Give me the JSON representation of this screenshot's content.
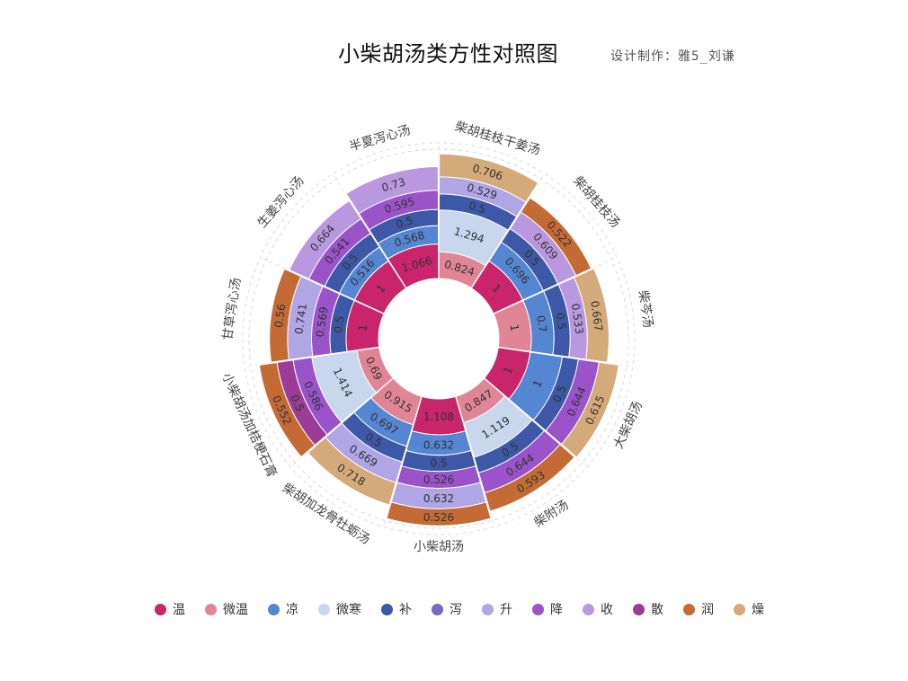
{
  "header": {
    "title": "小柴胡汤类方性对照图",
    "subtitle": "设计制作：雅5_刘谦"
  },
  "chart_data": {
    "type": "sunburst-stacked-radial-bar",
    "title": "小柴胡汤类方性对照图",
    "legend_position": "bottom",
    "series": [
      {
        "name": "温",
        "color": "#c8256a"
      },
      {
        "name": "微温",
        "color": "#df8595"
      },
      {
        "name": "凉",
        "color": "#5586d2"
      },
      {
        "name": "微寒",
        "color": "#c8d7ee"
      },
      {
        "name": "补",
        "color": "#3d58a6"
      },
      {
        "name": "泻",
        "color": "#7767c7"
      },
      {
        "name": "升",
        "color": "#b0a5e5"
      },
      {
        "name": "降",
        "color": "#9a53c9"
      },
      {
        "name": "收",
        "color": "#ba98df"
      },
      {
        "name": "散",
        "color": "#9b3c96"
      },
      {
        "name": "润",
        "color": "#c46a35"
      },
      {
        "name": "燥",
        "color": "#d4aa7a"
      }
    ],
    "formulas": [
      {
        "name": "柴胡桂枝干姜汤",
        "segments": [
          {
            "type": "微温",
            "value": 0.824
          },
          {
            "type": "微寒",
            "value": 1.294
          },
          {
            "type": "补",
            "value": 0.5
          },
          {
            "type": "升",
            "value": 0.529
          },
          {
            "type": "燥",
            "value": 0.706
          }
        ]
      },
      {
        "name": "柴胡桂枝汤",
        "segments": [
          {
            "type": "温",
            "value": 1.0
          },
          {
            "type": "凉",
            "value": 0.696
          },
          {
            "type": "补",
            "value": 0.5
          },
          {
            "type": "收",
            "value": 0.609
          },
          {
            "type": "润",
            "value": 0.522
          }
        ]
      },
      {
        "name": "柴芩汤",
        "segments": [
          {
            "type": "微温",
            "value": 1
          },
          {
            "type": "凉",
            "value": 0.7
          },
          {
            "type": "补",
            "value": 0.5
          },
          {
            "type": "收",
            "value": 0.533
          },
          {
            "type": "燥",
            "value": 0.667
          }
        ]
      },
      {
        "name": "大柴胡汤",
        "segments": [
          {
            "type": "温",
            "value": 1.0
          },
          {
            "type": "凉",
            "value": 1
          },
          {
            "type": "补",
            "value": 0.5
          },
          {
            "type": "降",
            "value": 0.644
          },
          {
            "type": "燥",
            "value": 0.615
          }
        ]
      },
      {
        "name": "柴附汤",
        "segments": [
          {
            "type": "微温",
            "value": 0.847
          },
          {
            "type": "微寒",
            "value": 1.119
          },
          {
            "type": "补",
            "value": 0.5
          },
          {
            "type": "降",
            "value": 0.644
          },
          {
            "type": "润",
            "value": 0.593
          }
        ]
      },
      {
        "name": "小柴胡汤",
        "segments": [
          {
            "type": "温",
            "value": 1.108
          },
          {
            "type": "凉",
            "value": 0.632
          },
          {
            "type": "补",
            "value": 0.5
          },
          {
            "type": "降",
            "value": 0.526
          },
          {
            "type": "升",
            "value": 0.632
          },
          {
            "type": "润",
            "value": 0.526
          }
        ]
      },
      {
        "name": "柴胡加龙骨牡蛎汤",
        "segments": [
          {
            "type": "微温",
            "value": 0.915
          },
          {
            "type": "凉",
            "value": 0.697
          },
          {
            "type": "补",
            "value": 0.5
          },
          {
            "type": "升",
            "value": 0.669
          },
          {
            "type": "燥",
            "value": 0.718
          }
        ]
      },
      {
        "name": "小柴胡汤加桔梗石膏",
        "segments": [
          {
            "type": "微温",
            "value": 0.69
          },
          {
            "type": "微寒",
            "value": 1.414
          },
          {
            "type": "降",
            "value": 0.586
          },
          {
            "type": "散",
            "value": 0.5
          },
          {
            "type": "润",
            "value": 0.552
          }
        ]
      },
      {
        "name": "甘草泻心汤",
        "segments": [
          {
            "type": "温",
            "value": 1.0
          },
          {
            "type": "补",
            "value": 0.5
          },
          {
            "type": "降",
            "value": 0.569
          },
          {
            "type": "升",
            "value": 0.741
          },
          {
            "type": "润",
            "value": 0.56
          }
        ]
      },
      {
        "name": "生姜泻心汤",
        "segments": [
          {
            "type": "温",
            "value": 1.0
          },
          {
            "type": "凉",
            "value": 0.516
          },
          {
            "type": "补",
            "value": 0.5
          },
          {
            "type": "降",
            "value": 0.541
          },
          {
            "type": "收",
            "value": 0.664
          }
        ]
      },
      {
        "name": "半夏泻心汤",
        "segments": [
          {
            "type": "温",
            "value": 1.066
          },
          {
            "type": "凉",
            "value": 0.568
          },
          {
            "type": "补",
            "value": 0.5
          },
          {
            "type": "降",
            "value": 0.595
          },
          {
            "type": "收",
            "value": 0.73
          }
        ]
      }
    ]
  }
}
